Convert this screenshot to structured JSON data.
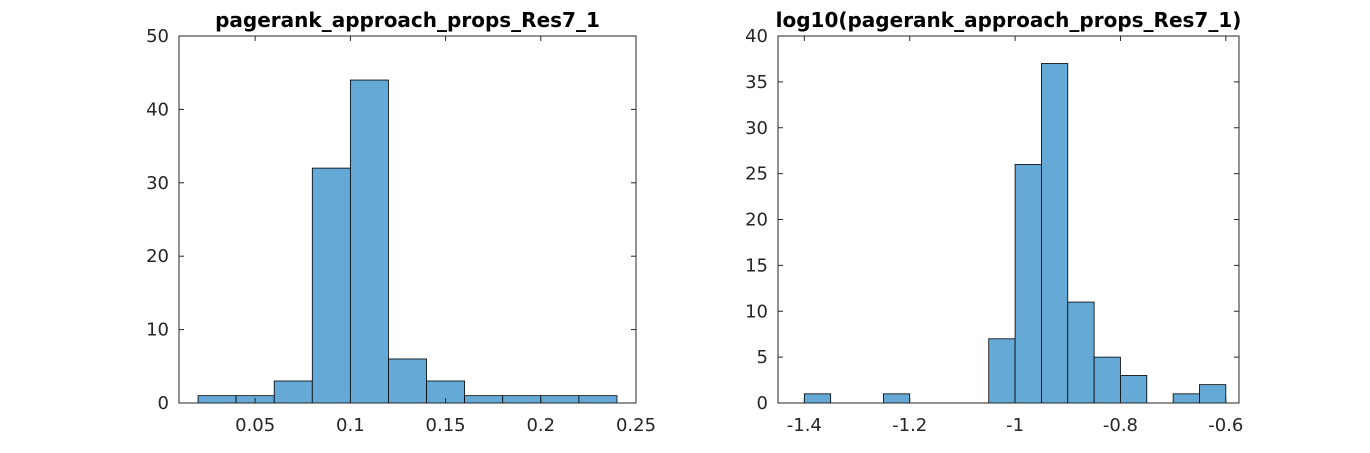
{
  "chart_data": [
    {
      "type": "histogram",
      "title": "pagerank_approach_props_Res7_1",
      "xlabel": "",
      "ylabel": "",
      "xlim": [
        0.01,
        0.25
      ],
      "ylim": [
        0,
        50
      ],
      "xticks": [
        0.05,
        0.1,
        0.15,
        0.2,
        0.25
      ],
      "xtick_labels": [
        "0.05",
        "0.1",
        "0.15",
        "0.2",
        "0.25"
      ],
      "yticks": [
        0,
        10,
        20,
        30,
        40,
        50
      ],
      "ytick_labels": [
        "0",
        "10",
        "20",
        "30",
        "40",
        "50"
      ],
      "bin_edges": [
        0.02,
        0.04,
        0.06,
        0.08,
        0.1,
        0.12,
        0.14,
        0.16,
        0.18,
        0.2,
        0.22,
        0.24
      ],
      "counts": [
        1,
        1,
        3,
        32,
        44,
        6,
        3,
        1,
        1,
        1,
        1
      ],
      "bar_color": "#65a9d7",
      "grid": false
    },
    {
      "type": "histogram",
      "title": "log10(pagerank_approach_props_Res7_1)",
      "xlabel": "",
      "ylabel": "",
      "xlim": [
        -1.45,
        -0.575
      ],
      "ylim": [
        0,
        40
      ],
      "xticks": [
        -1.4,
        -1.2,
        -1,
        -0.8,
        -0.6
      ],
      "xtick_labels": [
        "-1.4",
        "-1.2",
        "-1",
        "-0.8",
        "-0.6"
      ],
      "yticks": [
        0,
        5,
        10,
        15,
        20,
        25,
        30,
        35,
        40
      ],
      "ytick_labels": [
        "0",
        "5",
        "10",
        "15",
        "20",
        "25",
        "30",
        "35",
        "40"
      ],
      "bin_edges": [
        -1.4,
        -1.35,
        -1.3,
        -1.25,
        -1.2,
        -1.15,
        -1.1,
        -1.05,
        -1.0,
        -0.95,
        -0.9,
        -0.85,
        -0.8,
        -0.75,
        -0.7,
        -0.65,
        -0.6
      ],
      "counts": [
        1,
        0,
        0,
        1,
        0,
        0,
        0,
        7,
        26,
        37,
        11,
        5,
        3,
        0,
        1,
        2
      ],
      "bar_color": "#65a9d7",
      "grid": false
    }
  ]
}
